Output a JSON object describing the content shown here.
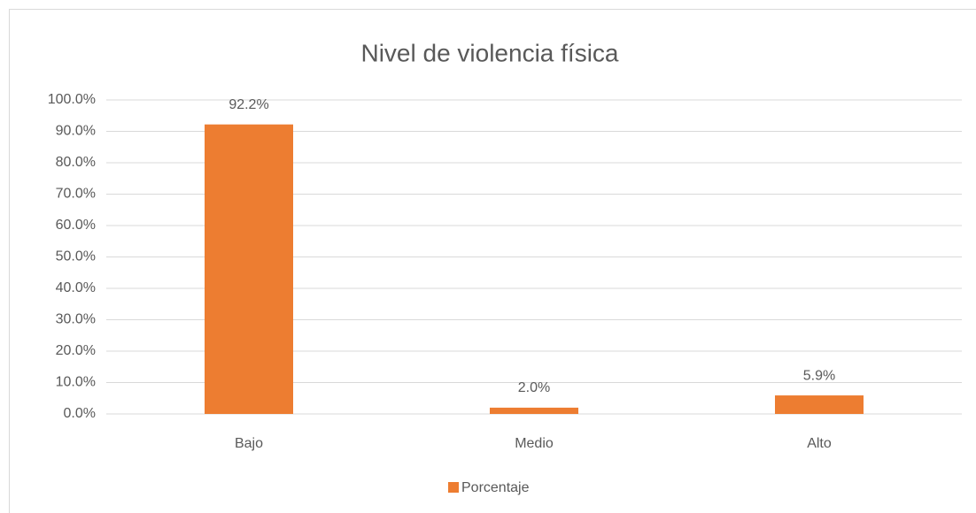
{
  "chart_data": {
    "type": "bar",
    "title": "Nivel de violencia física",
    "categories": [
      "Bajo",
      "Medio",
      "Alto"
    ],
    "series": [
      {
        "name": "Porcentaje",
        "color": "#ed7d31",
        "values": [
          92.2,
          2.0,
          5.9
        ],
        "value_labels": [
          "92.2%",
          "2.0%",
          "5.9%"
        ]
      }
    ],
    "ylim": [
      0,
      100
    ],
    "yticks": [
      {
        "value": 0,
        "label": "0.0%"
      },
      {
        "value": 10,
        "label": "10.0%"
      },
      {
        "value": 20,
        "label": "20.0%"
      },
      {
        "value": 30,
        "label": "30.0%"
      },
      {
        "value": 40,
        "label": "40.0%"
      },
      {
        "value": 50,
        "label": "50.0%"
      },
      {
        "value": 60,
        "label": "60.0%"
      },
      {
        "value": 70,
        "label": "70.0%"
      },
      {
        "value": 80,
        "label": "80.0%"
      },
      {
        "value": 90,
        "label": "90.0%"
      },
      {
        "value": 100,
        "label": "100.0%"
      }
    ],
    "grid": true,
    "legend": "bottom"
  }
}
